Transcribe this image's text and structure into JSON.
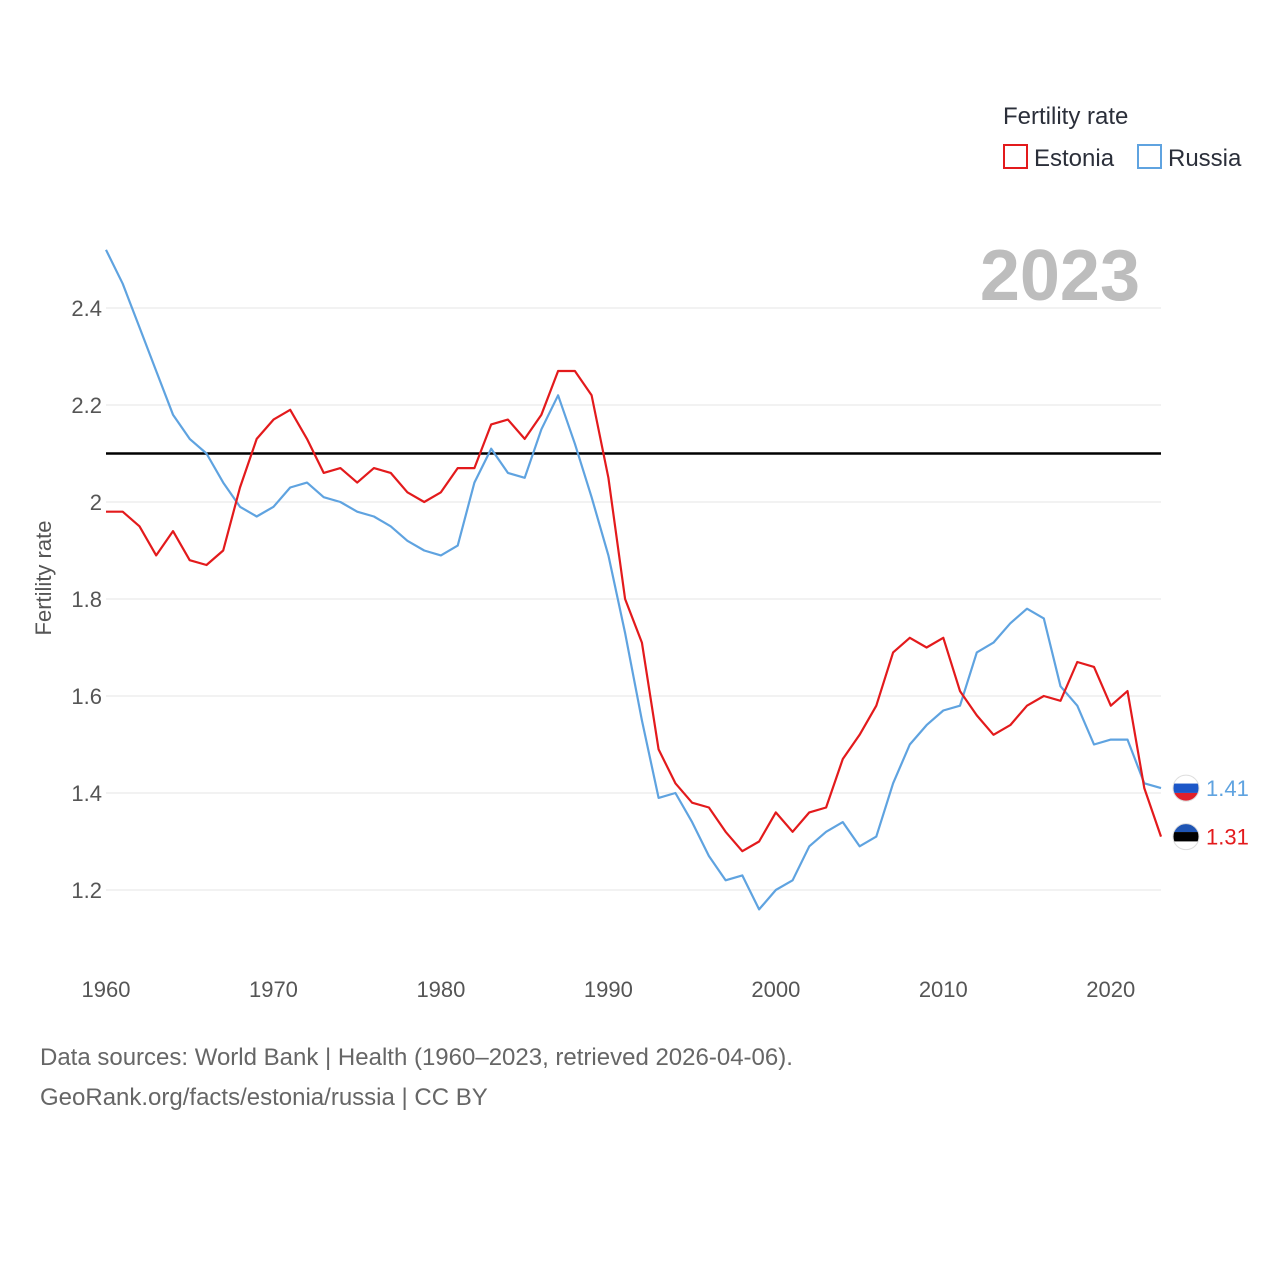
{
  "chart_data": {
    "type": "line",
    "legend_title": "Fertility rate",
    "ylabel": "Fertility rate",
    "xlabel": "",
    "year_label": "2023",
    "ylim": [
      1.1,
      2.55
    ],
    "xlim": [
      1960,
      2023
    ],
    "y_ticks": [
      1.2,
      1.4,
      1.6,
      1.8,
      2,
      2.2,
      2.4
    ],
    "y_tick_labels": [
      "1.2",
      "1.4",
      "1.6",
      "1.8",
      "2",
      "2.2",
      "2.4"
    ],
    "x_ticks": [
      1960,
      1970,
      1980,
      1990,
      2000,
      2010,
      2020
    ],
    "x_tick_labels": [
      "1960",
      "1970",
      "1980",
      "1990",
      "2000",
      "2010",
      "2020"
    ],
    "reference_line": 2.1,
    "x": [
      1960,
      1961,
      1962,
      1963,
      1964,
      1965,
      1966,
      1967,
      1968,
      1969,
      1970,
      1971,
      1972,
      1973,
      1974,
      1975,
      1976,
      1977,
      1978,
      1979,
      1980,
      1981,
      1982,
      1983,
      1984,
      1985,
      1986,
      1987,
      1988,
      1989,
      1990,
      1991,
      1992,
      1993,
      1994,
      1995,
      1996,
      1997,
      1998,
      1999,
      2000,
      2001,
      2002,
      2003,
      2004,
      2005,
      2006,
      2007,
      2008,
      2009,
      2010,
      2011,
      2012,
      2013,
      2014,
      2015,
      2016,
      2017,
      2018,
      2019,
      2020,
      2021,
      2022,
      2023
    ],
    "series": [
      {
        "name": "Estonia",
        "color": "#e31a1c",
        "end_label": "1.31",
        "values": [
          1.98,
          1.98,
          1.95,
          1.89,
          1.94,
          1.88,
          1.87,
          1.9,
          2.03,
          2.13,
          2.17,
          2.19,
          2.13,
          2.06,
          2.07,
          2.04,
          2.07,
          2.06,
          2.02,
          2.0,
          2.02,
          2.07,
          2.07,
          2.16,
          2.17,
          2.13,
          2.18,
          2.27,
          2.27,
          2.22,
          2.05,
          1.8,
          1.71,
          1.49,
          1.42,
          1.38,
          1.37,
          1.32,
          1.28,
          1.3,
          1.36,
          1.32,
          1.36,
          1.37,
          1.47,
          1.52,
          1.58,
          1.69,
          1.72,
          1.7,
          1.72,
          1.61,
          1.56,
          1.52,
          1.54,
          1.58,
          1.6,
          1.59,
          1.67,
          1.66,
          1.58,
          1.61,
          1.41,
          1.31
        ]
      },
      {
        "name": "Russia",
        "color": "#5fa3e0",
        "end_label": "1.41",
        "values": [
          2.52,
          2.45,
          2.36,
          2.27,
          2.18,
          2.13,
          2.1,
          2.04,
          1.99,
          1.97,
          1.99,
          2.03,
          2.04,
          2.01,
          2.0,
          1.98,
          1.97,
          1.95,
          1.92,
          1.9,
          1.89,
          1.91,
          2.04,
          2.11,
          2.06,
          2.05,
          2.15,
          2.22,
          2.12,
          2.01,
          1.89,
          1.73,
          1.55,
          1.39,
          1.4,
          1.34,
          1.27,
          1.22,
          1.23,
          1.16,
          1.2,
          1.22,
          1.29,
          1.32,
          1.34,
          1.29,
          1.31,
          1.42,
          1.5,
          1.54,
          1.57,
          1.58,
          1.69,
          1.71,
          1.75,
          1.78,
          1.76,
          1.62,
          1.58,
          1.5,
          1.51,
          1.51,
          1.42,
          1.41
        ]
      }
    ]
  },
  "footer": {
    "line1": "Data sources: World Bank | Health (1960–2023, retrieved 2026-04-06).",
    "line2": "GeoRank.org/facts/estonia/russia | CC BY"
  }
}
